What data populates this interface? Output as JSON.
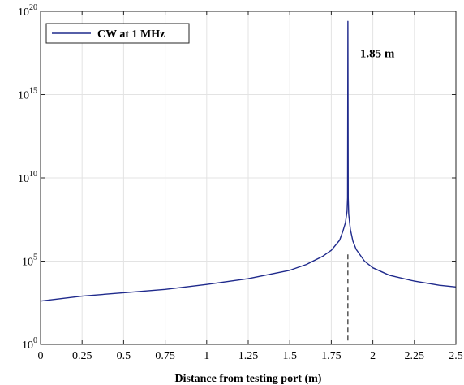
{
  "chart_data": {
    "type": "line",
    "xlabel": "Distance from testing port (m)",
    "ylabel": "",
    "xlim": [
      0,
      2.5
    ],
    "ylim_log10": [
      0,
      20
    ],
    "yscale": "log",
    "grid": true,
    "legend_location": "top-left",
    "x_ticks": [
      0,
      0.25,
      0.5,
      0.75,
      1,
      1.25,
      1.5,
      1.75,
      2,
      2.25,
      2.5
    ],
    "x_tick_labels": [
      "0",
      "0.25",
      "0.5",
      "0.75",
      "1",
      "1.25",
      "1.5",
      "1.75",
      "2",
      "2.25",
      "2.5"
    ],
    "y_ticks": [
      {
        "base": "10",
        "exp": "0"
      },
      {
        "base": "10",
        "exp": "5"
      },
      {
        "base": "10",
        "exp": "10"
      },
      {
        "base": "10",
        "exp": "15"
      },
      {
        "base": "10",
        "exp": "20"
      }
    ],
    "series": [
      {
        "name": "CW at 1 MHz",
        "color": "#1f2a8c",
        "x": [
          0,
          0.25,
          0.5,
          0.75,
          1.0,
          1.25,
          1.5,
          1.6,
          1.7,
          1.75,
          1.8,
          1.82,
          1.835,
          1.845,
          1.848,
          1.85,
          1.852,
          1.855,
          1.865,
          1.88,
          1.9,
          1.95,
          2.0,
          2.1,
          2.25,
          2.4,
          2.5
        ],
        "y_log10": [
          2.6,
          2.9,
          3.1,
          3.3,
          3.6,
          3.95,
          4.45,
          4.8,
          5.3,
          5.65,
          6.25,
          6.8,
          7.3,
          8.0,
          8.8,
          19.4,
          8.8,
          7.8,
          6.9,
          6.2,
          5.7,
          5.0,
          4.6,
          4.15,
          3.8,
          3.55,
          3.45
        ]
      }
    ],
    "annotations": [
      {
        "text": "1.85 m",
        "x": 1.85,
        "y_log10": 17.5,
        "vline_to_axis": true
      }
    ]
  }
}
